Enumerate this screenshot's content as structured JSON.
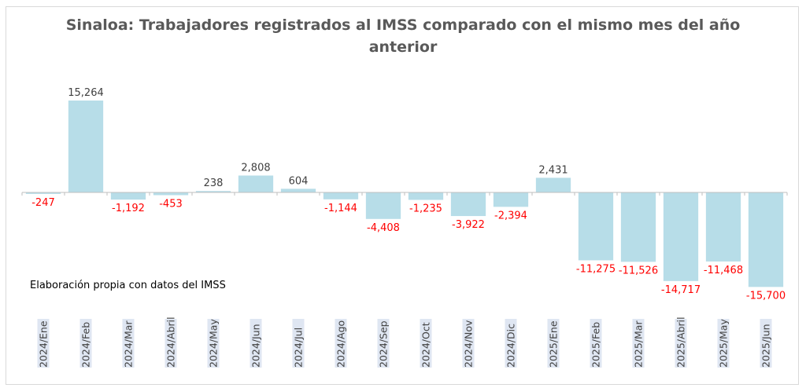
{
  "chart_data": {
    "type": "bar",
    "title": "Sinaloa: Trabajadores registrados al IMSS comparado con el mismo mes del año anterior",
    "note": "Elaboración propia con datos del IMSS",
    "categories": [
      "2024/Ene",
      "2024/Feb",
      "2024/Mar",
      "2024/Abril",
      "2024/May",
      "2024/Jun",
      "2024/Jul",
      "2024/Ago",
      "2024/Sep",
      "2024/Oct",
      "2024/Nov",
      "2024/Dic",
      "2025/Ene",
      "2025/Feb",
      "2025/Mar",
      "2025/Abril",
      "2025/May",
      "2025/Jun"
    ],
    "values": [
      -247,
      15264,
      -1192,
      -453,
      238,
      2808,
      604,
      -1144,
      -4408,
      -1235,
      -3922,
      -2394,
      2431,
      -11275,
      -11526,
      -14717,
      -11468,
      -15700
    ],
    "value_labels": [
      "-247",
      "15,264",
      "-1,192",
      "-453",
      "238",
      "2,808",
      "604",
      "-1,144",
      "-4,408",
      "-1,235",
      "-3,922",
      "-2,394",
      "2,431",
      "-11,275",
      "-11,526",
      "-14,717",
      "-11,468",
      "-15,700"
    ],
    "colors": {
      "bar": "#b7dde8",
      "positive_label": "#404040",
      "negative_label": "#ff0000",
      "category_band": "#dfe6f2"
    },
    "grid": false,
    "legend": "none"
  }
}
